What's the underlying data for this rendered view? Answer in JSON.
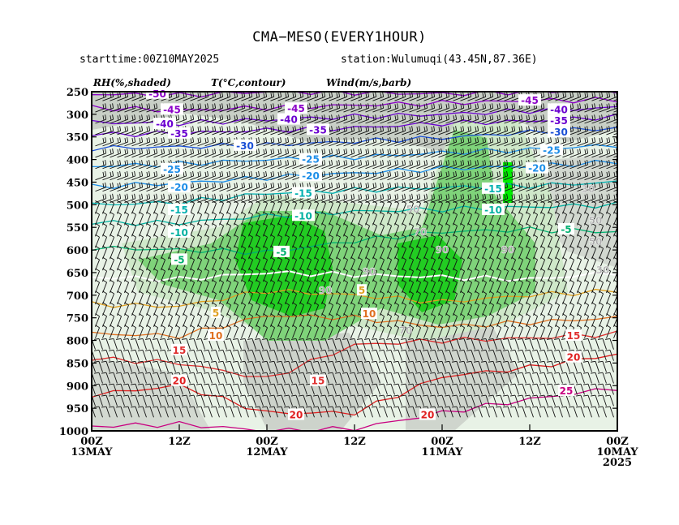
{
  "header": {
    "title": "CMA−MESO(EVERY1HOUR)",
    "starttime": "starttime:00Z10MAY2025",
    "station": "station:Wulumuqi(43.45N,87.36E)"
  },
  "legend": {
    "rh": "RH(%,shaded)",
    "temp": "T(°C,contour)",
    "wind": "Wind(m/s,barb)"
  },
  "chart_data": {
    "type": "heatmap",
    "title": "CMA−MESO(EVERY1HOUR)",
    "y_axis": {
      "ticks": [
        250,
        300,
        350,
        400,
        450,
        500,
        550,
        600,
        650,
        700,
        750,
        800,
        850,
        900,
        950,
        1000
      ],
      "ylim": [
        1000,
        250
      ]
    },
    "x_axis": {
      "tick_labels": [
        {
          "top": "00Z",
          "bottom": "13MAY",
          "extra": "",
          "x": 0
        },
        {
          "top": "12Z",
          "bottom": "",
          "extra": "",
          "x": 12
        },
        {
          "top": "00Z",
          "bottom": "12MAY",
          "extra": "",
          "x": 24
        },
        {
          "top": "12Z",
          "bottom": "",
          "extra": "",
          "x": 36
        },
        {
          "top": "00Z",
          "bottom": "11MAY",
          "extra": "",
          "x": 48
        },
        {
          "top": "12Z",
          "bottom": "",
          "extra": "",
          "x": 60
        },
        {
          "top": "00Z",
          "bottom": "10MAY",
          "extra": "2025",
          "x": 72
        }
      ],
      "xlim": [
        0,
        72
      ]
    },
    "temperature_contours": [
      {
        "value": -50,
        "color": "#8b00c8"
      },
      {
        "value": -45,
        "color": "#8b00c8"
      },
      {
        "value": -40,
        "color": "#6a00d0"
      },
      {
        "value": -35,
        "color": "#6a00d0"
      },
      {
        "value": -30,
        "color": "#1a4fd6"
      },
      {
        "value": -25,
        "color": "#1e8ee8"
      },
      {
        "value": -20,
        "color": "#1e8ee8"
      },
      {
        "value": -15,
        "color": "#00b0b0"
      },
      {
        "value": -10,
        "color": "#00b0a0"
      },
      {
        "value": -5,
        "color": "#00b070"
      },
      {
        "value": 0,
        "color": "#ffffff"
      },
      {
        "value": 5,
        "color": "#e0a020"
      },
      {
        "value": 10,
        "color": "#e07020"
      },
      {
        "value": 15,
        "color": "#e03030"
      },
      {
        "value": 20,
        "color": "#e02020"
      },
      {
        "value": 25,
        "color": "#c80080"
      }
    ],
    "temperature_labels": [
      {
        "text": "-50",
        "x": 9,
        "p": 255,
        "color": "#8b00c8"
      },
      {
        "text": "-45",
        "x": 11,
        "p": 290,
        "color": "#8b00c8"
      },
      {
        "text": "-45",
        "x": 28,
        "p": 288,
        "color": "#8b00c8"
      },
      {
        "text": "-45",
        "x": 60,
        "p": 270,
        "color": "#8b00c8"
      },
      {
        "text": "-40",
        "x": 10,
        "p": 322,
        "color": "#6a00d0"
      },
      {
        "text": "-40",
        "x": 27,
        "p": 312,
        "color": "#6a00d0"
      },
      {
        "text": "-40",
        "x": 64,
        "p": 290,
        "color": "#6a00d0"
      },
      {
        "text": "-35",
        "x": 12,
        "p": 343,
        "color": "#6a00d0"
      },
      {
        "text": "-35",
        "x": 31,
        "p": 335,
        "color": "#6a00d0"
      },
      {
        "text": "-35",
        "x": 64,
        "p": 315,
        "color": "#6a00d0"
      },
      {
        "text": "-30",
        "x": 21,
        "p": 370,
        "color": "#1a4fd6"
      },
      {
        "text": "-30",
        "x": 64,
        "p": 340,
        "color": "#1a4fd6"
      },
      {
        "text": "-25",
        "x": 11,
        "p": 422,
        "color": "#1e8ee8"
      },
      {
        "text": "-25",
        "x": 30,
        "p": 400,
        "color": "#1e8ee8"
      },
      {
        "text": "-25",
        "x": 63,
        "p": 380,
        "color": "#1e8ee8"
      },
      {
        "text": "-20",
        "x": 12,
        "p": 462,
        "color": "#1e8ee8"
      },
      {
        "text": "-20",
        "x": 30,
        "p": 437,
        "color": "#1e8ee8"
      },
      {
        "text": "-20",
        "x": 61,
        "p": 420,
        "color": "#1e8ee8"
      },
      {
        "text": "-15",
        "x": 12,
        "p": 512,
        "color": "#00b0b0"
      },
      {
        "text": "-15",
        "x": 29,
        "p": 475,
        "color": "#00b0b0"
      },
      {
        "text": "-15",
        "x": 55,
        "p": 465,
        "color": "#00b0b0"
      },
      {
        "text": "-10",
        "x": 12,
        "p": 562,
        "color": "#00b0a0"
      },
      {
        "text": "-10",
        "x": 29,
        "p": 525,
        "color": "#00b0a0"
      },
      {
        "text": "-10",
        "x": 55,
        "p": 512,
        "color": "#00b0a0"
      },
      {
        "text": "-5",
        "x": 12,
        "p": 622,
        "color": "#00b070"
      },
      {
        "text": "-5",
        "x": 26,
        "p": 605,
        "color": "#00b070"
      },
      {
        "text": "-5",
        "x": 65,
        "p": 555,
        "color": "#00b070"
      },
      {
        "text": "5",
        "x": 17,
        "p": 740,
        "color": "#e0a020"
      },
      {
        "text": "5",
        "x": 37,
        "p": 690,
        "color": "#e0a020"
      },
      {
        "text": "10",
        "x": 17,
        "p": 790,
        "color": "#e07020"
      },
      {
        "text": "10",
        "x": 38,
        "p": 742,
        "color": "#e07020"
      },
      {
        "text": "15",
        "x": 12,
        "p": 822,
        "color": "#e03030"
      },
      {
        "text": "15",
        "x": 31,
        "p": 890,
        "color": "#e03030"
      },
      {
        "text": "15",
        "x": 66,
        "p": 790,
        "color": "#e03030"
      },
      {
        "text": "20",
        "x": 12,
        "p": 890,
        "color": "#e02020"
      },
      {
        "text": "20",
        "x": 28,
        "p": 965,
        "color": "#e02020"
      },
      {
        "text": "20",
        "x": 46,
        "p": 965,
        "color": "#e02020"
      },
      {
        "text": "20",
        "x": 66,
        "p": 838,
        "color": "#e02020"
      },
      {
        "text": "25",
        "x": 65,
        "p": 912,
        "color": "#c80080"
      }
    ],
    "rh_labels": [
      {
        "text": "30",
        "x": 68,
        "p": 465
      },
      {
        "text": "30",
        "x": 70,
        "p": 645
      },
      {
        "text": "50",
        "x": 44,
        "p": 510
      },
      {
        "text": "50",
        "x": 69,
        "p": 535
      },
      {
        "text": "50",
        "x": 69,
        "p": 582
      },
      {
        "text": "70",
        "x": 45,
        "p": 560
      },
      {
        "text": "70",
        "x": 43,
        "p": 778
      },
      {
        "text": "90",
        "x": 38,
        "p": 648
      },
      {
        "text": "90",
        "x": 32,
        "p": 690
      },
      {
        "text": "90",
        "x": 48,
        "p": 600
      },
      {
        "text": "90",
        "x": 57,
        "p": 600
      }
    ]
  }
}
